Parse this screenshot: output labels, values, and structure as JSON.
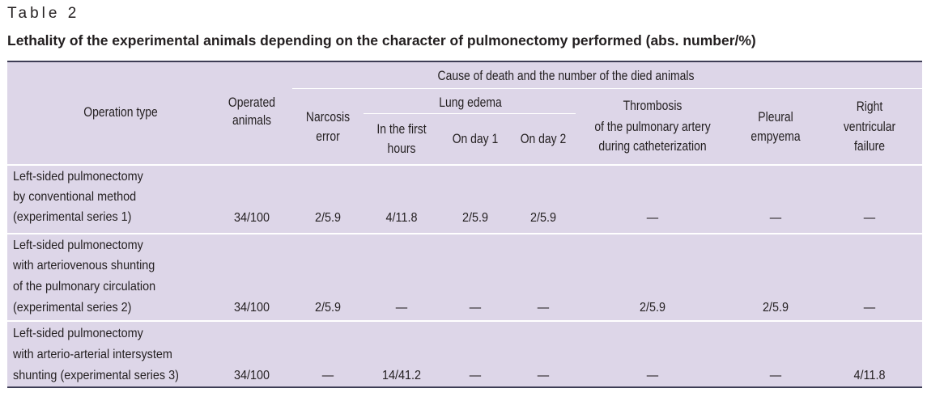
{
  "table_label": "Table 2",
  "caption": "Lethality of the experimental animals depending on the character of pulmonectomy performed (abs. number/%)",
  "header": {
    "operation_type": "Operation type",
    "operated_animals": [
      "Operated",
      "animals"
    ],
    "cause_group": "Cause of death and the number of the died animals",
    "narcosis": [
      "Narcosis",
      "error"
    ],
    "lung_edema": "Lung edema",
    "first_hours": [
      "In the first",
      "hours"
    ],
    "day1": "On day 1",
    "day2": "On day 2",
    "thrombosis": [
      "Thrombosis",
      "of the pulmonary artery",
      "during catheterization"
    ],
    "pleural": [
      "Pleural",
      "empyema"
    ],
    "right_vent": [
      "Right",
      "ventricular",
      "failure"
    ]
  },
  "rows": [
    {
      "type": [
        "Left-sided pulmonectomy",
        "by conventional method",
        "(experimental series 1)"
      ],
      "operated": "34/100",
      "narcosis": "2/5.9",
      "first_hours": "4/11.8",
      "day1": "2/5.9",
      "day2": "2/5.9",
      "thrombosis": "—",
      "pleural": "—",
      "right_vent": "—"
    },
    {
      "type": [
        "Left-sided pulmonectomy",
        "with arteriovenous shunting",
        "of the pulmonary circulation",
        "(experimental series 2)"
      ],
      "operated": "34/100",
      "narcosis": "2/5.9",
      "first_hours": "—",
      "day1": "—",
      "day2": "—",
      "thrombosis": "2/5.9",
      "pleural": "2/5.9",
      "right_vent": "—"
    },
    {
      "type": [
        "Left-sided pulmonectomy",
        "with arterio-arterial intersystem",
        "shunting (experimental series 3)"
      ],
      "operated": "34/100",
      "narcosis": "—",
      "first_hours": "14/41.2",
      "day1": "—",
      "day2": "—",
      "thrombosis": "—",
      "pleural": "—",
      "right_vent": "4/11.8"
    }
  ]
}
